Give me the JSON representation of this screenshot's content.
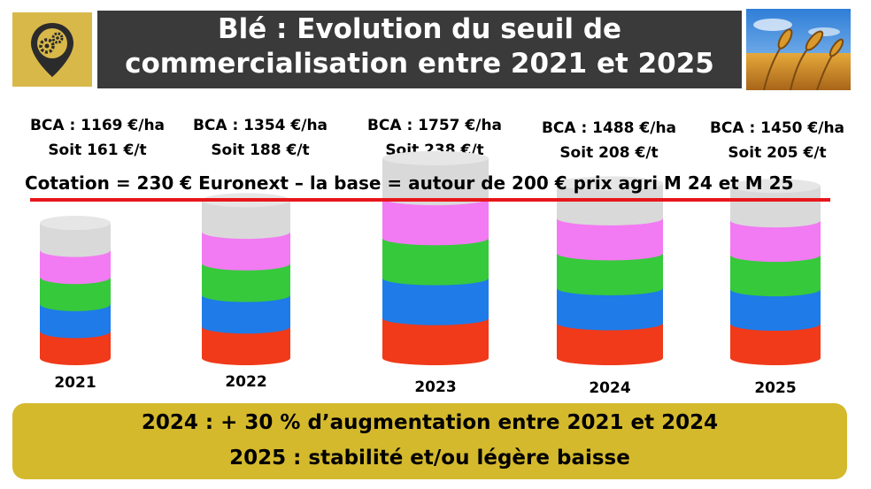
{
  "header": {
    "title_line1": "Blé : Evolution du seuil de",
    "title_line2": "commercialisation entre 2021 et 2025"
  },
  "colors": {
    "header_bg": "#3a3a3a",
    "logo_bg": "#d9b84a",
    "footer_bg": "#d4b92d",
    "threshold_line": "#e8161b",
    "segments": [
      "#f03a1a",
      "#1e7be8",
      "#36c93c",
      "#f27af2",
      "#d9d9d9"
    ]
  },
  "icons": {
    "logo": "map-pin-gears-icon",
    "photo": "wheat-field-photo"
  },
  "bca": [
    {
      "line1": "BCA : 1169  €/ha",
      "line2": "Soit 161 €/t"
    },
    {
      "line1": "BCA : 1354 €/ha",
      "line2": "Soit 188 €/t"
    },
    {
      "line1": "BCA : 1757 €/ha",
      "line2": "Soit 238 €/t"
    },
    {
      "line1": "BCA : 1488 €/ha",
      "line2": "Soit 208  €/t"
    },
    {
      "line1": "BCA : 1450  €/ha",
      "line2": "Soit 205  €/t"
    }
  ],
  "cotation": "Cotation = 230 € Euronext – la  base  = autour de 200 € prix agri M 24 et M 25",
  "chart_data": {
    "type": "bar",
    "stacked": true,
    "categories": [
      "2021",
      "2022",
      "2023",
      "2024",
      "2025"
    ],
    "values": [
      161,
      188,
      238,
      208,
      205
    ],
    "bca_eur_ha": [
      1169,
      1354,
      1757,
      1488,
      1450
    ],
    "reference_line": 230,
    "segment_colors": [
      "#f03a1a",
      "#1e7be8",
      "#36c93c",
      "#f27af2",
      "#d9d9d9"
    ]
  },
  "footer": {
    "line1": "2024 : + 30 % d’augmentation entre 2021 et 2024",
    "line2": "2025 : stabilité et/ou légère baisse"
  }
}
